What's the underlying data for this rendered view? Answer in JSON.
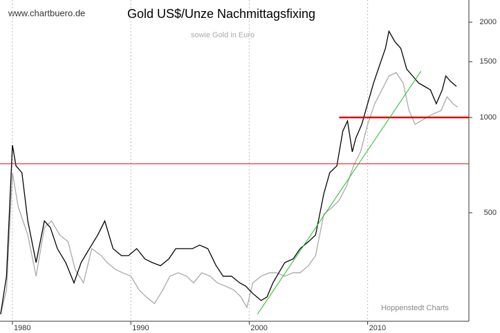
{
  "chart_data": {
    "type": "line",
    "title": "Gold US$/Unze Nachmittagsfixing",
    "subtitle": "sowie Gold in Euro",
    "watermark": "www.chartbuero.de",
    "source": "Hoppenstedt Charts",
    "log_y": true,
    "grid_x": true,
    "xlim": [
      1978.95,
      2018.55
    ],
    "xticks": [
      1980,
      1990,
      2000,
      2010
    ],
    "ylim": [
      227,
      2350
    ],
    "yticks": [
      500,
      1000,
      1500,
      2000
    ],
    "series": [
      {
        "color": "#000000",
        "x": [
          1979.0,
          1979.5,
          1980.0,
          1980.3,
          1980.8,
          1981.3,
          1982.0,
          1982.7,
          1983.2,
          1983.8,
          1984.5,
          1985.2,
          1985.8,
          1986.5,
          1987.2,
          1987.8,
          1988.5,
          1989.2,
          1989.8,
          1990.5,
          1991.2,
          1991.8,
          1992.5,
          1993.2,
          1993.8,
          1994.5,
          1995.2,
          1995.8,
          1996.5,
          1997.2,
          1997.8,
          1998.5,
          1999.2,
          1999.7,
          2000.3,
          2001.0,
          2001.5,
          2002.0,
          2002.5,
          2003.0,
          2003.7,
          2004.3,
          2005.0,
          2005.6,
          2006.3,
          2006.8,
          2007.4,
          2007.9,
          2008.3,
          2008.7,
          2009.0,
          2009.5,
          2010.0,
          2010.5,
          2011.0,
          2011.5,
          2011.8,
          2012.3,
          2012.8,
          2013.3,
          2013.8,
          2014.3,
          2014.8,
          2015.3,
          2015.8,
          2016.3,
          2016.6,
          2017.0,
          2017.5
        ],
        "values": [
          239,
          315,
          818,
          703,
          669,
          471,
          348,
          471,
          449,
          385,
          348,
          300,
          348,
          385,
          425,
          471,
          385,
          366,
          366,
          385,
          357,
          348,
          340,
          357,
          385,
          385,
          385,
          395,
          385,
          340,
          315,
          315,
          300,
          293,
          278,
          264,
          271,
          300,
          323,
          348,
          357,
          385,
          405,
          425,
          575,
          669,
          703,
          905,
          975,
          778,
          860,
          951,
          1105,
          1285,
          1458,
          1652,
          1872,
          1736,
          1652,
          1421,
          1352,
          1285,
          1254,
          1222,
          1105,
          1222,
          1352,
          1300,
          1254
        ]
      },
      {
        "color": "#a8a8a8",
        "x": [
          1979.0,
          1979.5,
          1980.0,
          1980.5,
          1981.3,
          1982.0,
          1982.7,
          1983.3,
          1984.0,
          1984.7,
          1985.3,
          1986.0,
          1986.7,
          1987.5,
          1988.0,
          1988.7,
          1989.3,
          1990.0,
          1990.7,
          1991.3,
          1992.0,
          1992.7,
          1993.3,
          1994.0,
          1994.7,
          1995.3,
          1996.0,
          1996.7,
          1997.3,
          1998.0,
          1998.7,
          1999.3,
          1999.8,
          2000.3,
          2001.0,
          2001.7,
          2002.3,
          2003.0,
          2003.7,
          2004.3,
          2005.0,
          2005.6,
          2006.3,
          2007.0,
          2007.6,
          2008.2,
          2008.8,
          2009.4,
          2010.0,
          2010.6,
          2011.2,
          2011.8,
          2012.4,
          2013.0,
          2013.5,
          2014.0,
          2014.5,
          2015.0,
          2015.5,
          2016.2,
          2016.7,
          2017.2,
          2017.6
        ],
        "values": [
          239,
          285,
          669,
          520,
          425,
          315,
          449,
          471,
          425,
          405,
          331,
          300,
          385,
          366,
          348,
          331,
          323,
          315,
          285,
          271,
          258,
          285,
          315,
          323,
          315,
          300,
          323,
          315,
          300,
          293,
          285,
          271,
          251,
          300,
          315,
          323,
          323,
          315,
          323,
          323,
          340,
          366,
          495,
          520,
          548,
          605,
          703,
          778,
          951,
          1105,
          1222,
          1352,
          1386,
          1285,
          1051,
          951,
          975,
          1000,
          1025,
          1051,
          1162,
          1105,
          1078
        ]
      }
    ],
    "reference_lines": [
      {
        "y": 714,
        "color": "#e00000",
        "width": 1
      },
      {
        "y": 1000,
        "x_start": 2007.6,
        "color": "#e00000",
        "width": 2.5
      },
      {
        "x": [
          2000.7,
          2014.5
        ],
        "y": [
          239,
          1400
        ],
        "color": "#22bb22",
        "width": 1
      }
    ]
  }
}
